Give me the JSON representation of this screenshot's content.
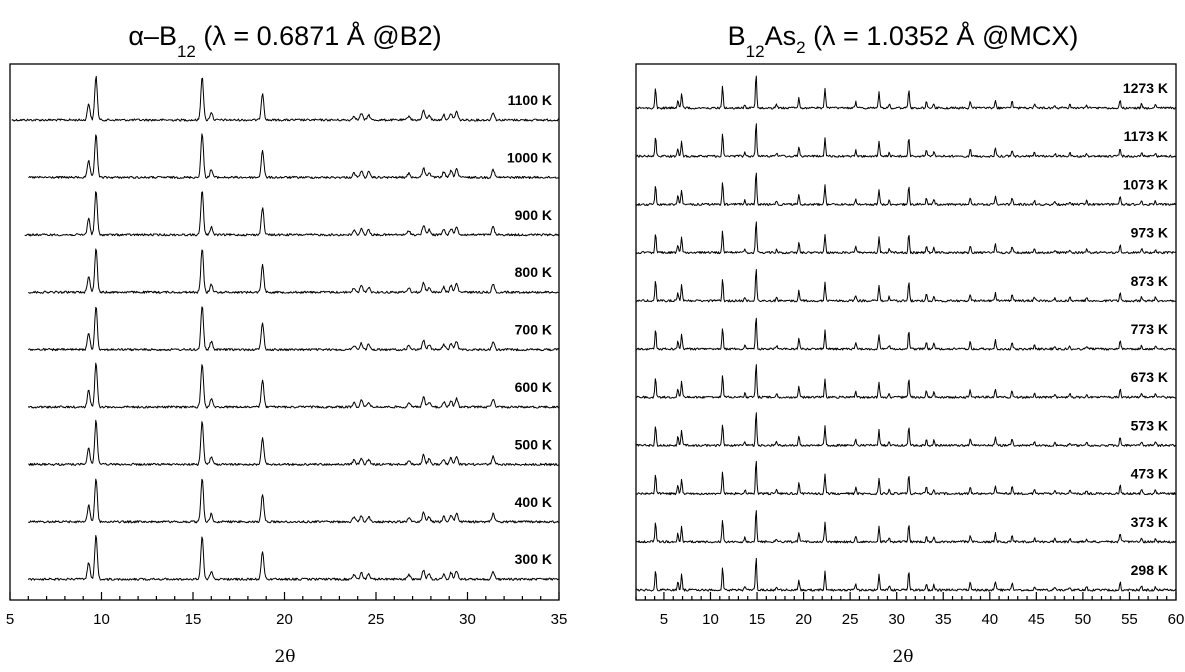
{
  "chart_data": [
    {
      "type": "line",
      "title": "α–B₁₂ (λ = 0.6871 Å @B2)",
      "title_parts": {
        "main": "α–B",
        "sub": "12",
        "rest": " (λ = 0.6871 ",
        "angstrom": "Å",
        "tail": " @B2)"
      },
      "xlabel": "2θ",
      "ylabel": "",
      "xlim": [
        5,
        35
      ],
      "xticks": [
        5,
        10,
        15,
        20,
        25,
        30,
        35
      ],
      "minor_step": 1,
      "grid": false,
      "y_axis": "stacked, no scale",
      "peaks": [
        {
          "x": 9.3,
          "y": 0.38
        },
        {
          "x": 9.7,
          "y": 1.0
        },
        {
          "x": 15.5,
          "y": 1.0
        },
        {
          "x": 16.0,
          "y": 0.18
        },
        {
          "x": 18.8,
          "y": 0.62
        },
        {
          "x": 23.8,
          "y": 0.1
        },
        {
          "x": 24.2,
          "y": 0.15
        },
        {
          "x": 24.6,
          "y": 0.12
        },
        {
          "x": 26.8,
          "y": 0.1
        },
        {
          "x": 27.6,
          "y": 0.22
        },
        {
          "x": 27.9,
          "y": 0.12
        },
        {
          "x": 28.7,
          "y": 0.12
        },
        {
          "x": 29.1,
          "y": 0.15
        },
        {
          "x": 29.4,
          "y": 0.2
        },
        {
          "x": 31.4,
          "y": 0.18
        }
      ],
      "series": [
        {
          "name": "1100 K",
          "x_start": 5.1
        },
        {
          "name": "1000 K",
          "x_start": 6.0
        },
        {
          "name": "900 K",
          "x_start": 5.8
        },
        {
          "name": "800 K",
          "x_start": 6.0
        },
        {
          "name": "700 K",
          "x_start": 6.0
        },
        {
          "name": "600 K",
          "x_start": 6.0
        },
        {
          "name": "500 K",
          "x_start": 6.0
        },
        {
          "name": "400 K",
          "x_start": 6.0
        },
        {
          "name": "300 K",
          "x_start": 6.0
        }
      ]
    },
    {
      "type": "line",
      "title": "B₁₂As₂ (λ = 1.0352 Å @MCX)",
      "title_parts": {
        "main": "B",
        "sub": "12",
        "mid": "As",
        "sub2": "2",
        "rest": " (λ = 1.0352 ",
        "angstrom": "Å",
        "tail": " @MCX)"
      },
      "xlabel": "2θ",
      "ylabel": "",
      "xlim": [
        2,
        60
      ],
      "xticks": [
        5,
        10,
        15,
        20,
        25,
        30,
        35,
        40,
        45,
        50,
        55,
        60
      ],
      "minor_step": 1,
      "grid": false,
      "y_axis": "stacked, no scale",
      "peaks": [
        {
          "x": 4.1,
          "y": 0.6
        },
        {
          "x": 6.5,
          "y": 0.25
        },
        {
          "x": 6.9,
          "y": 0.45
        },
        {
          "x": 11.3,
          "y": 0.65
        },
        {
          "x": 13.7,
          "y": 0.12
        },
        {
          "x": 14.9,
          "y": 1.0
        },
        {
          "x": 17.1,
          "y": 0.1
        },
        {
          "x": 19.5,
          "y": 0.3
        },
        {
          "x": 22.3,
          "y": 0.55
        },
        {
          "x": 25.6,
          "y": 0.18
        },
        {
          "x": 28.1,
          "y": 0.45
        },
        {
          "x": 29.2,
          "y": 0.12
        },
        {
          "x": 31.3,
          "y": 0.55
        },
        {
          "x": 33.2,
          "y": 0.2
        },
        {
          "x": 34.0,
          "y": 0.15
        },
        {
          "x": 37.9,
          "y": 0.22
        },
        {
          "x": 40.6,
          "y": 0.25
        },
        {
          "x": 42.4,
          "y": 0.2
        },
        {
          "x": 44.8,
          "y": 0.12
        },
        {
          "x": 47.0,
          "y": 0.08
        },
        {
          "x": 48.6,
          "y": 0.1
        },
        {
          "x": 50.4,
          "y": 0.1
        },
        {
          "x": 54.0,
          "y": 0.25
        },
        {
          "x": 56.3,
          "y": 0.12
        },
        {
          "x": 57.8,
          "y": 0.1
        }
      ],
      "series": [
        {
          "name": "1273 K",
          "x_start": 2.0
        },
        {
          "name": "1173 K",
          "x_start": 2.0
        },
        {
          "name": "1073 K",
          "x_start": 2.0
        },
        {
          "name": "973 K",
          "x_start": 2.0
        },
        {
          "name": "873 K",
          "x_start": 2.0
        },
        {
          "name": "773 K",
          "x_start": 2.0
        },
        {
          "name": "673 K",
          "x_start": 2.0
        },
        {
          "name": "573 K",
          "x_start": 2.0
        },
        {
          "name": "473 K",
          "x_start": 2.0
        },
        {
          "name": "373 K",
          "x_start": 2.0
        },
        {
          "name": "298 K",
          "x_start": 2.0
        }
      ]
    }
  ]
}
